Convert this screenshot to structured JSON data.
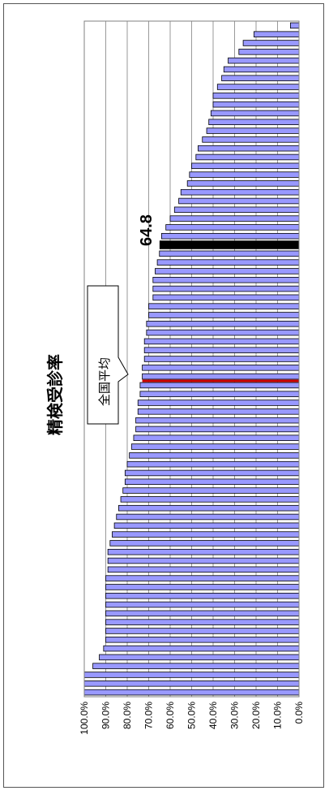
{
  "chart_data": {
    "type": "bar",
    "orientation": "horizontal-bars, rendered rotated 90°",
    "title": "精検受診率",
    "x_ticks": [
      "0.0%",
      "10.0%",
      "20.0%",
      "30.0%",
      "40.0%",
      "50.0%",
      "60.0%",
      "70.0%",
      "80.0%",
      "90.0%",
      "100.0%"
    ],
    "xlim": [
      0,
      100
    ],
    "grid": true,
    "values": [
      100,
      100,
      100,
      96,
      93,
      91,
      90,
      90,
      90,
      90,
      90,
      90,
      90,
      90,
      89,
      89,
      89,
      88,
      87,
      86,
      85,
      84,
      83,
      82,
      81,
      81,
      80,
      79,
      78,
      77,
      76,
      76,
      75,
      75,
      74,
      74,
      73,
      73,
      72,
      72,
      72,
      71,
      71,
      70,
      70,
      68,
      68,
      68,
      67,
      66,
      65,
      64.8,
      64,
      62,
      60,
      58,
      56,
      55,
      52,
      51,
      50,
      48,
      47,
      45,
      43,
      42,
      41,
      40,
      40,
      38,
      36,
      35,
      33,
      28,
      26,
      21,
      4
    ],
    "national_average": {
      "label": "全国平均",
      "value": 73
    },
    "highlight": {
      "label": "64.8",
      "value": 64.8
    },
    "colors": {
      "bar": "#9999ff",
      "bar_border": "#000000",
      "average": "#cc0000",
      "highlight": "#000000"
    }
  }
}
